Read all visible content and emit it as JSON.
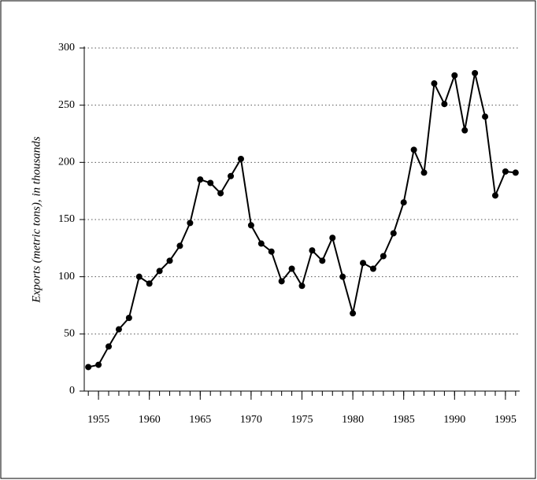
{
  "chart_data": {
    "type": "line",
    "y_label": "Exports (metric tons), in thousands",
    "x": [
      1954,
      1955,
      1956,
      1957,
      1958,
      1959,
      1960,
      1961,
      1962,
      1963,
      1964,
      1965,
      1966,
      1967,
      1968,
      1969,
      1970,
      1971,
      1972,
      1973,
      1974,
      1975,
      1976,
      1977,
      1978,
      1979,
      1980,
      1981,
      1982,
      1983,
      1984,
      1985,
      1986,
      1987,
      1988,
      1989,
      1990,
      1991,
      1992,
      1993,
      1994,
      1995,
      1996
    ],
    "series": [
      {
        "color": "#000000",
        "values": [
          21,
          23,
          39,
          54,
          64,
          100,
          94,
          105,
          114,
          127,
          147,
          185,
          182,
          173,
          188,
          203,
          145,
          129,
          122,
          96,
          107,
          92,
          123,
          114,
          134,
          100,
          68,
          112,
          107,
          118,
          138,
          165,
          211,
          191,
          269,
          251,
          276,
          228,
          278,
          240,
          171,
          192,
          191
        ]
      }
    ],
    "xlim": [
      1953.6,
      1996.4
    ],
    "xticks": [
      1955,
      1960,
      1965,
      1970,
      1975,
      1980,
      1985,
      1990,
      1995
    ],
    "ylim": [
      0,
      300
    ],
    "yticks": [
      0,
      50,
      100,
      150,
      200,
      250,
      300
    ],
    "grid": true
  }
}
